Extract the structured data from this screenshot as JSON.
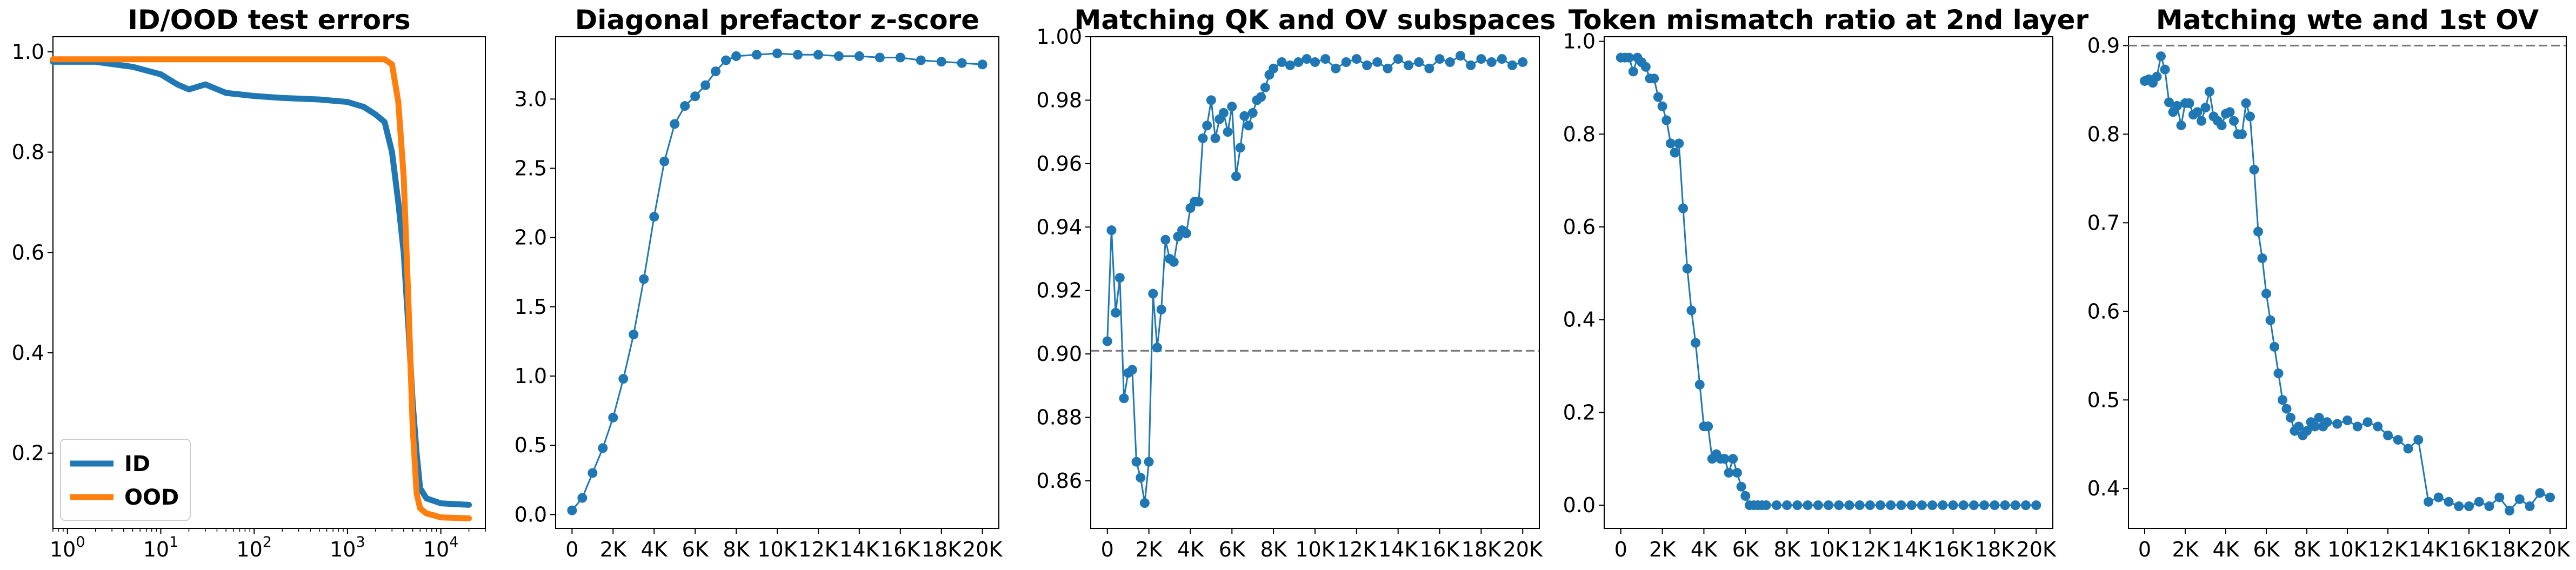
{
  "chart_data": [
    {
      "type": "line",
      "title": "ID/OOD test errors",
      "xscale": "log",
      "xlim": [
        0.7,
        30000
      ],
      "ylim": [
        0.05,
        1.03
      ],
      "x_ticks": [
        1,
        10,
        100,
        1000,
        10000
      ],
      "x_tick_labels": [
        [
          "10",
          "0"
        ],
        [
          "10",
          "1"
        ],
        [
          "10",
          "2"
        ],
        [
          "10",
          "3"
        ],
        [
          "10",
          "4"
        ]
      ],
      "y_ticks": [
        0.2,
        0.4,
        0.6,
        0.8,
        1.0
      ],
      "y_tick_labels": [
        "0.2",
        "0.4",
        "0.6",
        "0.8",
        "1.0"
      ],
      "legend": {
        "placement": "lower-left",
        "entries": [
          "ID",
          "OOD"
        ]
      },
      "series": [
        {
          "name": "ID",
          "color": "#1f77b4",
          "x": [
            0.7,
            1,
            2,
            5,
            10,
            15,
            20,
            30,
            50,
            100,
            200,
            500,
            1000,
            1500,
            2000,
            2500,
            3000,
            3500,
            4000,
            4500,
            5000,
            5500,
            6000,
            7000,
            10000,
            20000
          ],
          "y": [
            0.98,
            0.98,
            0.98,
            0.97,
            0.955,
            0.935,
            0.925,
            0.935,
            0.918,
            0.912,
            0.908,
            0.905,
            0.9,
            0.89,
            0.875,
            0.86,
            0.8,
            0.7,
            0.6,
            0.45,
            0.3,
            0.2,
            0.13,
            0.11,
            0.1,
            0.097
          ]
        },
        {
          "name": "OOD",
          "color": "#ff7f0e",
          "x": [
            0.7,
            1,
            10,
            100,
            1000,
            2000,
            2500,
            3000,
            3500,
            4000,
            4500,
            5000,
            5500,
            6000,
            7000,
            10000,
            20000
          ],
          "y": [
            0.985,
            0.985,
            0.985,
            0.985,
            0.985,
            0.985,
            0.985,
            0.975,
            0.9,
            0.75,
            0.5,
            0.25,
            0.12,
            0.09,
            0.08,
            0.072,
            0.07
          ]
        }
      ]
    },
    {
      "type": "line",
      "title": "Diagonal prefactor z-score",
      "xlim": [
        -800,
        20800
      ],
      "ylim": [
        -0.1,
        3.45
      ],
      "x_ticks": [
        0,
        2000,
        4000,
        6000,
        8000,
        10000,
        12000,
        14000,
        16000,
        18000,
        20000
      ],
      "x_tick_labels": [
        "0",
        "2K",
        "4K",
        "6K",
        "8K",
        "10K",
        "12K",
        "14K",
        "16K",
        "18K",
        "20K"
      ],
      "y_ticks": [
        0,
        0.5,
        1.0,
        1.5,
        2.0,
        2.5,
        3.0
      ],
      "y_tick_labels": [
        "0.0",
        "0.5",
        "1.0",
        "1.5",
        "2.0",
        "2.5",
        "3.0"
      ],
      "markers": true,
      "series": [
        {
          "color": "#1f77b4",
          "x": [
            0,
            500,
            1000,
            1500,
            2000,
            2500,
            3000,
            3500,
            4000,
            4500,
            5000,
            5500,
            6000,
            6500,
            7000,
            7500,
            8000,
            9000,
            10000,
            11000,
            12000,
            13000,
            14000,
            15000,
            16000,
            17000,
            18000,
            19000,
            20000
          ],
          "y": [
            0.03,
            0.12,
            0.3,
            0.48,
            0.7,
            0.98,
            1.3,
            1.7,
            2.15,
            2.55,
            2.82,
            2.95,
            3.02,
            3.1,
            3.2,
            3.28,
            3.31,
            3.32,
            3.33,
            3.32,
            3.32,
            3.31,
            3.31,
            3.3,
            3.3,
            3.28,
            3.27,
            3.26,
            3.25
          ]
        }
      ]
    },
    {
      "type": "line",
      "title": "Matching QK and OV subspaces",
      "xlim": [
        -800,
        20800
      ],
      "ylim": [
        0.845,
        1.0
      ],
      "x_ticks": [
        0,
        2000,
        4000,
        6000,
        8000,
        10000,
        12000,
        14000,
        16000,
        18000,
        20000
      ],
      "x_tick_labels": [
        "0",
        "2K",
        "4K",
        "6K",
        "8K",
        "10K",
        "12K",
        "14K",
        "16K",
        "18K",
        "20K"
      ],
      "y_ticks": [
        0.86,
        0.88,
        0.9,
        0.92,
        0.94,
        0.96,
        0.98,
        1.0
      ],
      "y_tick_labels": [
        "0.86",
        "0.88",
        "0.90",
        "0.92",
        "0.94",
        "0.96",
        "0.98",
        "1.00"
      ],
      "hline": 0.901,
      "markers": true,
      "series": [
        {
          "color": "#1f77b4",
          "x": [
            0,
            200,
            400,
            600,
            800,
            1000,
            1200,
            1400,
            1600,
            1800,
            2000,
            2200,
            2400,
            2600,
            2800,
            3000,
            3200,
            3400,
            3600,
            3800,
            4000,
            4200,
            4400,
            4600,
            4800,
            5000,
            5200,
            5400,
            5600,
            5800,
            6000,
            6200,
            6400,
            6600,
            6800,
            7000,
            7200,
            7400,
            7600,
            7800,
            8000,
            8400,
            8800,
            9200,
            9600,
            10000,
            10500,
            11000,
            11500,
            12000,
            12500,
            13000,
            13500,
            14000,
            14500,
            15000,
            15500,
            16000,
            16500,
            17000,
            17500,
            18000,
            18500,
            19000,
            19500,
            20000
          ],
          "y": [
            0.904,
            0.939,
            0.913,
            0.924,
            0.886,
            0.894,
            0.895,
            0.866,
            0.861,
            0.853,
            0.866,
            0.919,
            0.902,
            0.914,
            0.936,
            0.93,
            0.929,
            0.937,
            0.939,
            0.938,
            0.946,
            0.948,
            0.948,
            0.968,
            0.972,
            0.98,
            0.968,
            0.974,
            0.976,
            0.97,
            0.978,
            0.956,
            0.965,
            0.975,
            0.972,
            0.976,
            0.98,
            0.981,
            0.984,
            0.988,
            0.99,
            0.992,
            0.991,
            0.992,
            0.993,
            0.992,
            0.993,
            0.99,
            0.992,
            0.993,
            0.991,
            0.992,
            0.99,
            0.993,
            0.991,
            0.992,
            0.99,
            0.993,
            0.992,
            0.994,
            0.991,
            0.993,
            0.992,
            0.993,
            0.991,
            0.992
          ]
        }
      ]
    },
    {
      "type": "line",
      "title": "Token mismatch ratio at 2nd layer",
      "xlim": [
        -800,
        20800
      ],
      "ylim": [
        -0.05,
        1.01
      ],
      "x_ticks": [
        0,
        2000,
        4000,
        6000,
        8000,
        10000,
        12000,
        14000,
        16000,
        18000,
        20000
      ],
      "x_tick_labels": [
        "0",
        "2K",
        "4K",
        "6K",
        "8K",
        "10K",
        "12K",
        "14K",
        "16K",
        "18K",
        "20K"
      ],
      "y_ticks": [
        0,
        0.2,
        0.4,
        0.6,
        0.8,
        1.0
      ],
      "y_tick_labels": [
        "0.0",
        "0.2",
        "0.4",
        "0.6",
        "0.8",
        "1.0"
      ],
      "markers": true,
      "series": [
        {
          "color": "#1f77b4",
          "x": [
            0,
            200,
            400,
            600,
            800,
            1000,
            1200,
            1400,
            1600,
            1800,
            2000,
            2200,
            2400,
            2600,
            2800,
            3000,
            3200,
            3400,
            3600,
            3800,
            4000,
            4200,
            4400,
            4600,
            4800,
            5000,
            5200,
            5400,
            5600,
            5800,
            6000,
            6200,
            6400,
            6600,
            6800,
            7000,
            7500,
            8000,
            8500,
            9000,
            9500,
            10000,
            10500,
            11000,
            11500,
            12000,
            12500,
            13000,
            13500,
            14000,
            14500,
            15000,
            15500,
            16000,
            16500,
            17000,
            17500,
            18000,
            18500,
            19000,
            19500,
            20000
          ],
          "y": [
            0.965,
            0.965,
            0.965,
            0.935,
            0.965,
            0.955,
            0.945,
            0.92,
            0.92,
            0.88,
            0.86,
            0.83,
            0.78,
            0.76,
            0.78,
            0.64,
            0.51,
            0.42,
            0.35,
            0.26,
            0.17,
            0.17,
            0.1,
            0.11,
            0.1,
            0.1,
            0.07,
            0.1,
            0.07,
            0.04,
            0.02,
            0.0,
            0.0,
            0.0,
            0.0,
            0.0,
            0.0,
            0.0,
            0.0,
            0.0,
            0.0,
            0.0,
            0.0,
            0.0,
            0.0,
            0.0,
            0.0,
            0.0,
            0.0,
            0.0,
            0.0,
            0.0,
            0.0,
            0.0,
            0.0,
            0.0,
            0.0,
            0.0,
            0.0,
            0.0,
            0.0,
            0.0
          ]
        }
      ]
    },
    {
      "type": "line",
      "title": "Matching wte and 1st OV",
      "xlim": [
        -800,
        20800
      ],
      "ylim": [
        0.355,
        0.91
      ],
      "x_ticks": [
        0,
        2000,
        4000,
        6000,
        8000,
        10000,
        12000,
        14000,
        16000,
        18000,
        20000
      ],
      "x_tick_labels": [
        "0",
        "2K",
        "4K",
        "6K",
        "8K",
        "10K",
        "12K",
        "14K",
        "16K",
        "18K",
        "20K"
      ],
      "y_ticks": [
        0.4,
        0.5,
        0.6,
        0.7,
        0.8,
        0.9
      ],
      "y_tick_labels": [
        "0.4",
        "0.5",
        "0.6",
        "0.7",
        "0.8",
        "0.9"
      ],
      "hline": 0.9,
      "markers": true,
      "series": [
        {
          "color": "#1f77b4",
          "x": [
            0,
            200,
            400,
            600,
            800,
            1000,
            1200,
            1400,
            1600,
            1800,
            2000,
            2200,
            2400,
            2600,
            2800,
            3000,
            3200,
            3400,
            3600,
            3800,
            4000,
            4200,
            4400,
            4600,
            4800,
            5000,
            5200,
            5400,
            5600,
            5800,
            6000,
            6200,
            6400,
            6600,
            6800,
            7000,
            7200,
            7400,
            7600,
            7800,
            8000,
            8200,
            8400,
            8600,
            8800,
            9000,
            9500,
            10000,
            10500,
            11000,
            11500,
            12000,
            12500,
            13000,
            13500,
            14000,
            14500,
            15000,
            15500,
            16000,
            16500,
            17000,
            17500,
            18000,
            18500,
            19000,
            19500,
            20000
          ],
          "y": [
            0.86,
            0.862,
            0.858,
            0.865,
            0.888,
            0.873,
            0.836,
            0.825,
            0.832,
            0.81,
            0.835,
            0.835,
            0.822,
            0.825,
            0.815,
            0.83,
            0.848,
            0.82,
            0.815,
            0.81,
            0.823,
            0.825,
            0.815,
            0.8,
            0.8,
            0.835,
            0.82,
            0.76,
            0.69,
            0.66,
            0.62,
            0.59,
            0.56,
            0.53,
            0.5,
            0.49,
            0.48,
            0.465,
            0.47,
            0.46,
            0.465,
            0.475,
            0.47,
            0.48,
            0.47,
            0.475,
            0.473,
            0.477,
            0.47,
            0.475,
            0.47,
            0.46,
            0.455,
            0.445,
            0.455,
            0.385,
            0.39,
            0.385,
            0.38,
            0.38,
            0.385,
            0.38,
            0.39,
            0.375,
            0.388,
            0.38,
            0.395,
            0.39
          ]
        }
      ]
    }
  ]
}
